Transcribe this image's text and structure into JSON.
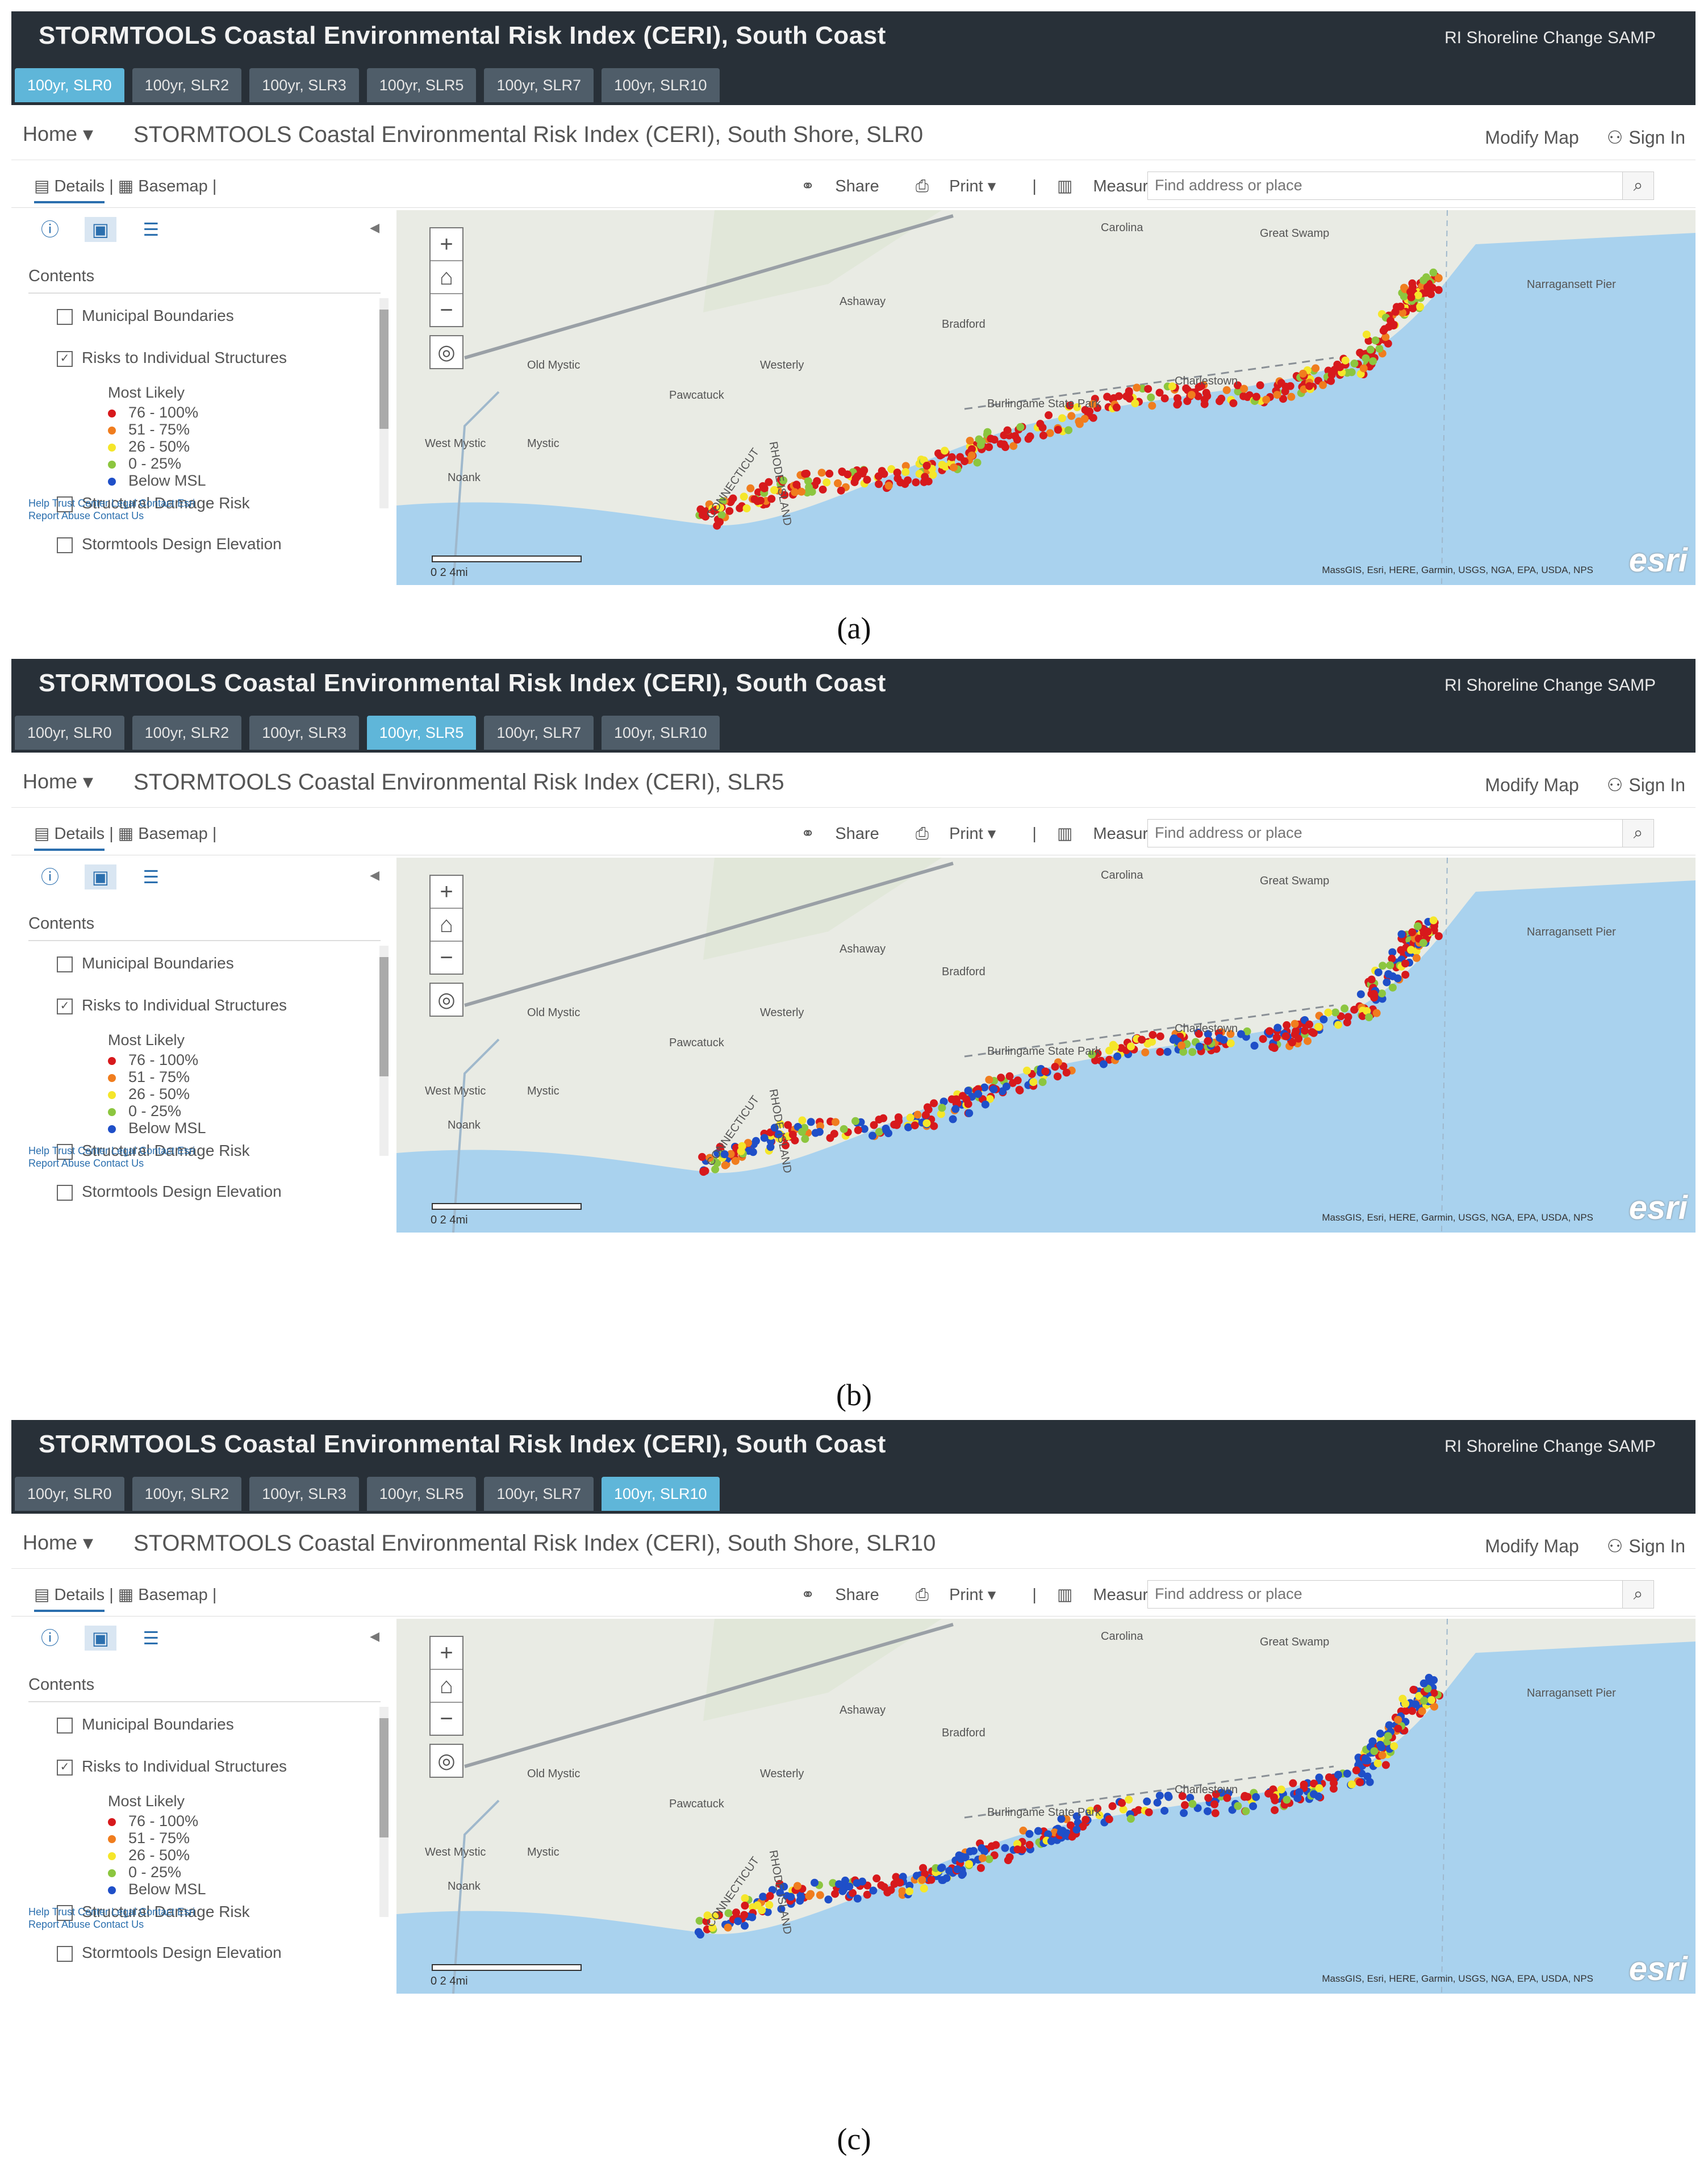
{
  "app": {
    "banner_title": "STORMTOOLS Coastal Environmental Risk Index (CERI), South Coast",
    "banner_subtitle": "RI Shoreline Change SAMP",
    "tabs": [
      "100yr, SLR0",
      "100yr, SLR2",
      "100yr, SLR3",
      "100yr, SLR5",
      "100yr, SLR7",
      "100yr, SLR10"
    ],
    "home_label": "Home ▾",
    "modify_map": "Modify Map",
    "sign_in": "Sign In",
    "toolbar": {
      "details": "Details",
      "basemap": "Basemap",
      "share": "Share",
      "print": "Print ▾",
      "measure": "Measure",
      "search_placeholder": "Find address or place"
    },
    "sidebar": {
      "contents_label": "Contents",
      "layers": [
        "Municipal Boundaries",
        "Risks to Individual Structures",
        "Structural Damage Risk",
        "Stormtools Design Elevation"
      ],
      "legend_title": "Most Likely",
      "legend": [
        {
          "label": "76 - 100%",
          "color": "#d7191c"
        },
        {
          "label": "51 - 75%",
          "color": "#f07d1e"
        },
        {
          "label": "26 - 50%",
          "color": "#f5e62a"
        },
        {
          "label": "0 - 25%",
          "color": "#8cc63f"
        },
        {
          "label": "Below MSL",
          "color": "#1f4fc8"
        }
      ],
      "footer_line1": "Help     Trust Center     Legal     Contact Esri",
      "footer_line2": "Report Abuse     Contact Us"
    },
    "map": {
      "attribution": "MassGIS, Esri, HERE, Garmin, USGS, NGA, EPA, USDA, NPS",
      "esri_logo": "esri",
      "scale_labels": "0          2          4mi",
      "places": [
        "Carolina",
        "Great Swamp",
        "Narragansett Pier",
        "Ashaway",
        "Bradford",
        "Old Mystic",
        "Westerly",
        "Pawcatuck",
        "Burlingame State Park",
        "Charlestown",
        "West Mystic",
        "Mystic",
        "Noank",
        "CONNECTICUT",
        "RHODE ISLAND"
      ]
    }
  },
  "panels": [
    {
      "active_tab": "100yr, SLR0",
      "map_title": "STORMTOOLS Coastal Environmental Risk Index (CERI), South Shore, SLR0",
      "caption": "(a)"
    },
    {
      "active_tab": "100yr, SLR5",
      "map_title": "STORMTOOLS Coastal Environmental Risk Index (CERI), SLR5",
      "caption": "(b)"
    },
    {
      "active_tab": "100yr, SLR10",
      "map_title": "STORMTOOLS Coastal Environmental Risk Index (CERI), South Shore, SLR10",
      "caption": "(c)"
    }
  ]
}
